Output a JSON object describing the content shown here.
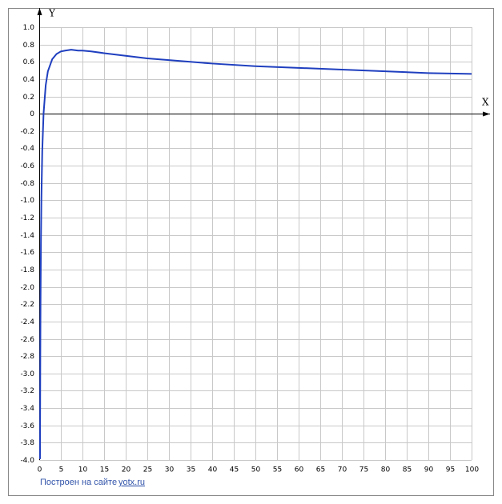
{
  "chart_data": {
    "type": "line",
    "x_label": "X",
    "y_label": "Y",
    "x": [
      0.182,
      0.2,
      0.25,
      0.3,
      0.4,
      0.5,
      0.7,
      1,
      1.5,
      2,
      3,
      4,
      5,
      6,
      7.39,
      9,
      10,
      12,
      15,
      20,
      25,
      30,
      40,
      50,
      60,
      70,
      80,
      90,
      100
    ],
    "values": [
      -3.99,
      -3.6,
      -2.77,
      -2.2,
      -1.45,
      -0.98,
      -0.43,
      0,
      0.33,
      0.49,
      0.63,
      0.69,
      0.72,
      0.73,
      0.74,
      0.73,
      0.73,
      0.72,
      0.7,
      0.67,
      0.64,
      0.62,
      0.58,
      0.55,
      0.53,
      0.51,
      0.49,
      0.47,
      0.46
    ],
    "color": "#1f3fbf",
    "xlim": [
      0,
      100
    ],
    "ylim": [
      -4,
      1
    ],
    "xticks": [
      0,
      5,
      10,
      15,
      20,
      25,
      30,
      35,
      40,
      45,
      50,
      55,
      60,
      65,
      70,
      75,
      80,
      85,
      90,
      95,
      100
    ],
    "yticks": [
      {
        "value": -4,
        "label": "-4.0"
      },
      -3.8,
      -3.6,
      -3.4,
      -3.2,
      {
        "value": -3,
        "label": "-3.0"
      },
      -2.8,
      -2.6,
      -2.4,
      -2.2,
      {
        "value": -2,
        "label": "-2.0"
      },
      -1.8,
      -1.6,
      -1.4,
      -1.2,
      {
        "value": -1,
        "label": "-1.0"
      },
      -0.8,
      -0.6,
      -0.4,
      -0.2,
      0,
      0.2,
      0.4,
      0.6,
      0.8,
      {
        "value": 1,
        "label": "1.0"
      }
    ],
    "grid": true
  },
  "footer": {
    "text": "Построен на сайте",
    "link": "yotx.ru"
  }
}
